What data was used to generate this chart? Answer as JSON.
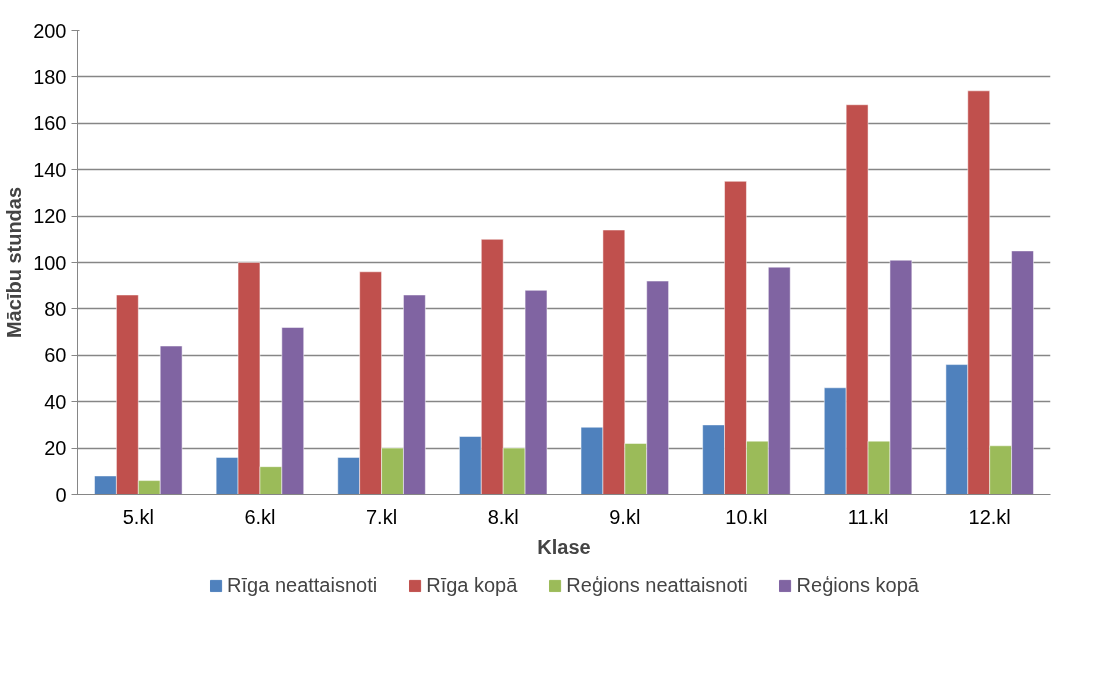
{
  "chart_data": {
    "type": "bar",
    "xlabel": "Klase",
    "ylabel": "Mācību stundas",
    "categories": [
      "5.kl",
      "6.kl",
      "7.kl",
      "8.kl",
      "9.kl",
      "10.kl",
      "11.kl",
      "12.kl"
    ],
    "series": [
      {
        "name": "Rīga neattaisnoti",
        "color": "#4f81bd",
        "values": [
          8,
          16,
          16,
          25,
          29,
          30,
          46,
          56
        ]
      },
      {
        "name": "Rīga kopā",
        "color": "#c0504d",
        "values": [
          86,
          100,
          96,
          110,
          114,
          135,
          168,
          174
        ]
      },
      {
        "name": "Reģions neattaisnoti",
        "color": "#9bbb59",
        "values": [
          6,
          12,
          20,
          20,
          22,
          23,
          23,
          21
        ]
      },
      {
        "name": "Reģions kopā",
        "color": "#8064a2",
        "values": [
          64,
          72,
          86,
          88,
          92,
          98,
          101,
          105
        ]
      }
    ],
    "ylim": [
      0,
      200
    ],
    "yticks": [
      0,
      20,
      40,
      60,
      80,
      100,
      120,
      140,
      160,
      180,
      200
    ],
    "grid": "y",
    "legend": "bottom"
  }
}
